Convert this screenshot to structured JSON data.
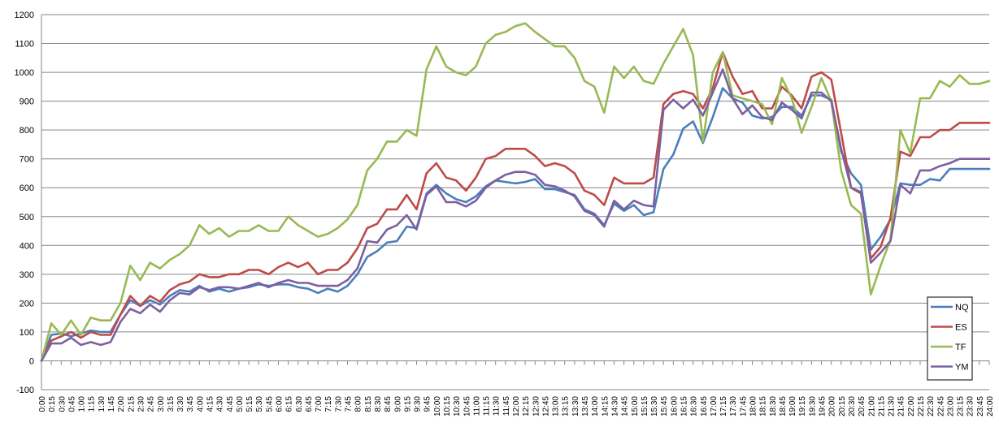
{
  "chart_data": {
    "type": "line",
    "title": "",
    "xlabel": "",
    "ylabel": "",
    "ylim": [
      -100,
      1200
    ],
    "yticks": [
      -100,
      0,
      100,
      200,
      300,
      400,
      500,
      600,
      700,
      800,
      900,
      1000,
      1100,
      1200
    ],
    "grid": true,
    "legend_position": "right",
    "x": [
      "0:00",
      "0:15",
      "0:30",
      "0:45",
      "1:00",
      "1:15",
      "1:30",
      "1:45",
      "2:00",
      "2:15",
      "2:30",
      "2:45",
      "3:00",
      "3:15",
      "3:30",
      "3:45",
      "4:00",
      "4:15",
      "4:30",
      "4:45",
      "5:00",
      "5:15",
      "5:30",
      "5:45",
      "6:00",
      "6:15",
      "6:30",
      "6:45",
      "7:00",
      "7:15",
      "7:30",
      "7:45",
      "8:00",
      "8:15",
      "8:30",
      "8:45",
      "9:00",
      "9:15",
      "9:30",
      "9:45",
      "10:00",
      "10:15",
      "10:30",
      "10:45",
      "11:00",
      "11:15",
      "11:30",
      "11:45",
      "12:00",
      "12:15",
      "12:30",
      "12:45",
      "13:00",
      "13:15",
      "13:30",
      "13:45",
      "14:00",
      "14:15",
      "14:30",
      "14:45",
      "15:00",
      "15:15",
      "15:30",
      "15:45",
      "16:00",
      "16:15",
      "16:30",
      "16:45",
      "17:00",
      "17:15",
      "17:30",
      "17:45",
      "18:00",
      "18:15",
      "18:30",
      "18:45",
      "19:00",
      "19:15",
      "19:30",
      "19:45",
      "20:00",
      "20:15",
      "20:30",
      "20:45",
      "21:00",
      "21:15",
      "21:30",
      "21:45",
      "22:00",
      "22:15",
      "22:30",
      "22:45",
      "23:00",
      "23:15",
      "23:30",
      "23:45",
      "24:00"
    ],
    "series": [
      {
        "name": "NQ",
        "color": "#4a7ebb",
        "values": [
          0,
          90,
          95,
          85,
          95,
          105,
          100,
          100,
          160,
          210,
          190,
          210,
          195,
          225,
          245,
          240,
          260,
          240,
          250,
          240,
          250,
          255,
          265,
          260,
          265,
          265,
          255,
          250,
          235,
          250,
          240,
          260,
          300,
          360,
          380,
          410,
          415,
          465,
          460,
          580,
          610,
          580,
          560,
          550,
          570,
          605,
          625,
          620,
          615,
          620,
          630,
          595,
          595,
          585,
          575,
          525,
          510,
          470,
          545,
          520,
          540,
          505,
          515,
          665,
          715,
          805,
          830,
          755,
          845,
          945,
          910,
          895,
          850,
          840,
          845,
          880,
          880,
          850,
          920,
          920,
          905,
          725,
          650,
          610,
          385,
          430,
          490,
          615,
          610,
          610,
          630,
          625,
          665,
          665,
          665,
          665,
          665
        ]
      },
      {
        "name": "ES",
        "color": "#be4b48",
        "values": [
          0,
          70,
          85,
          100,
          80,
          100,
          90,
          90,
          160,
          225,
          190,
          225,
          205,
          245,
          265,
          275,
          300,
          290,
          290,
          300,
          300,
          315,
          315,
          300,
          325,
          340,
          325,
          340,
          300,
          315,
          315,
          340,
          390,
          460,
          475,
          525,
          525,
          575,
          525,
          650,
          685,
          635,
          625,
          590,
          635,
          700,
          710,
          735,
          735,
          735,
          710,
          675,
          685,
          675,
          650,
          590,
          575,
          540,
          635,
          615,
          615,
          615,
          635,
          890,
          925,
          935,
          925,
          875,
          945,
          1070,
          985,
          925,
          935,
          875,
          875,
          950,
          920,
          875,
          985,
          1000,
          975,
          790,
          600,
          580,
          355,
          395,
          495,
          725,
          710,
          775,
          775,
          800,
          800,
          825,
          825,
          825,
          825
        ]
      },
      {
        "name": "TF",
        "color": "#98b954",
        "values": [
          0,
          130,
          90,
          140,
          90,
          150,
          140,
          140,
          200,
          330,
          280,
          340,
          320,
          350,
          370,
          400,
          470,
          440,
          460,
          430,
          450,
          450,
          470,
          450,
          450,
          500,
          470,
          450,
          430,
          440,
          460,
          490,
          540,
          660,
          700,
          760,
          760,
          800,
          780,
          1010,
          1090,
          1020,
          1000,
          990,
          1020,
          1100,
          1130,
          1140,
          1160,
          1170,
          1140,
          1115,
          1090,
          1090,
          1050,
          970,
          950,
          860,
          1020,
          980,
          1020,
          970,
          960,
          1030,
          1090,
          1150,
          1060,
          760,
          1000,
          1070,
          920,
          910,
          900,
          890,
          820,
          980,
          910,
          790,
          880,
          980,
          900,
          660,
          540,
          510,
          230,
          330,
          420,
          800,
          720,
          910,
          910,
          970,
          950,
          990,
          960,
          960,
          970
        ]
      },
      {
        "name": "YM",
        "color": "#7d60a0",
        "values": [
          0,
          60,
          60,
          80,
          55,
          65,
          55,
          65,
          135,
          180,
          165,
          195,
          170,
          210,
          235,
          230,
          255,
          245,
          255,
          255,
          250,
          260,
          270,
          255,
          270,
          280,
          270,
          270,
          260,
          260,
          260,
          280,
          320,
          415,
          410,
          455,
          470,
          505,
          455,
          575,
          605,
          550,
          550,
          535,
          555,
          600,
          625,
          645,
          655,
          655,
          645,
          610,
          605,
          590,
          570,
          520,
          505,
          465,
          555,
          525,
          555,
          540,
          535,
          870,
          905,
          875,
          905,
          850,
          930,
          1010,
          910,
          855,
          885,
          845,
          835,
          895,
          870,
          840,
          930,
          930,
          900,
          735,
          600,
          585,
          340,
          375,
          415,
          610,
          580,
          660,
          660,
          675,
          685,
          700,
          700,
          700,
          700
        ]
      }
    ]
  }
}
